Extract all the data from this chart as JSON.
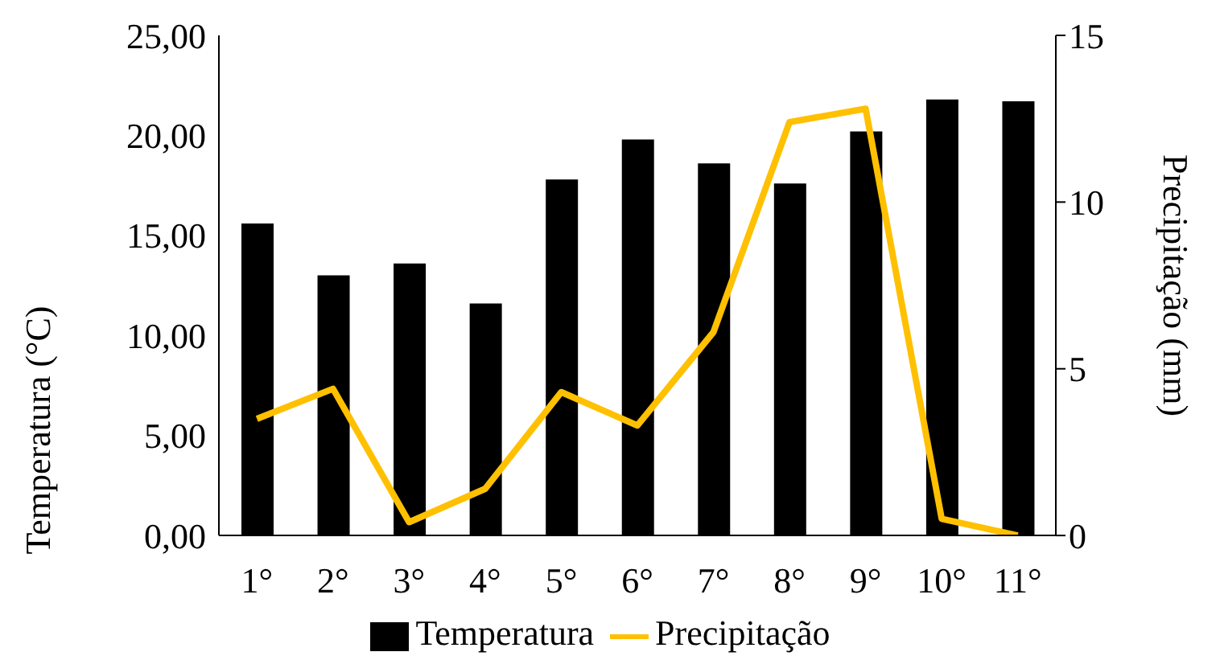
{
  "chart_data": {
    "type": "bar",
    "categories": [
      "1°",
      "2°",
      "3°",
      "4°",
      "5°",
      "6°",
      "7°",
      "8°",
      "9°",
      "10°",
      "11°"
    ],
    "series": [
      {
        "name": "Temperatura",
        "color": "#000000",
        "values": [
          15.6,
          13.0,
          13.6,
          11.6,
          17.8,
          19.8,
          18.6,
          17.6,
          20.2,
          21.8,
          21.7
        ]
      },
      {
        "name": "Precipitação",
        "type": "line",
        "axis": "y2",
        "color": "#ffc000",
        "values": [
          3.5,
          4.4,
          0.4,
          1.4,
          4.3,
          3.3,
          6.1,
          12.4,
          12.8,
          0.5,
          0
        ]
      }
    ],
    "ylabel": "Temperatura (°C)",
    "y2label": "Precipitação (mm)",
    "ylim": [
      0,
      25
    ],
    "yticks": [
      {
        "value": 0,
        "label": "0,00"
      },
      {
        "value": 5,
        "label": "5,00"
      },
      {
        "value": 10,
        "label": "10,00"
      },
      {
        "value": 15,
        "label": "15,00"
      },
      {
        "value": 20,
        "label": "20,00"
      },
      {
        "value": 25,
        "label": "25,00"
      }
    ],
    "y2lim": [
      0,
      15
    ],
    "y2ticks": [
      0,
      5,
      10,
      15
    ],
    "legend": "bottom",
    "marker": "none"
  }
}
